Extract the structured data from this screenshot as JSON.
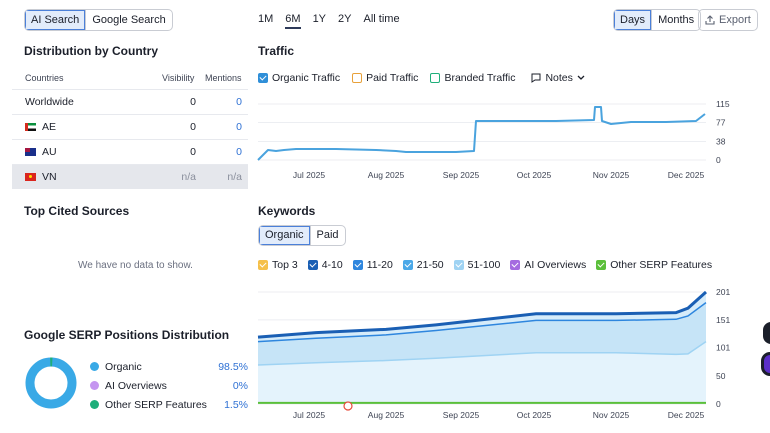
{
  "search_toggle": [
    "AI Search",
    "Google Search"
  ],
  "range_tabs": [
    "1M",
    "6M",
    "1Y",
    "2Y",
    "All time"
  ],
  "granularity": [
    "Days",
    "Months"
  ],
  "export_label": "Export",
  "distribution": {
    "title": "Distribution by Country",
    "headers": {
      "country": "Countries",
      "visibility": "Visibility",
      "mentions": "Mentions"
    },
    "rows": [
      {
        "name": "Worldwide",
        "visibility": "0",
        "mentions": "0"
      },
      {
        "name": "AE",
        "visibility": "0",
        "mentions": "0"
      },
      {
        "name": "AU",
        "visibility": "0",
        "mentions": "0"
      },
      {
        "name": "VN",
        "visibility": "n/a",
        "mentions": "n/a"
      }
    ]
  },
  "top_cited": {
    "title": "Top Cited Sources",
    "empty": "We have no data to show."
  },
  "serp": {
    "title": "Google SERP Positions Distribution",
    "items": [
      {
        "label": "Organic",
        "value": "98.5%",
        "color": "#39a9e6"
      },
      {
        "label": "AI Overviews",
        "value": "0%",
        "color": "#c596f0"
      },
      {
        "label": "Other SERP Features",
        "value": "1.5%",
        "color": "#1fae7a"
      }
    ]
  },
  "traffic": {
    "title": "Traffic",
    "legend": [
      "Organic Traffic",
      "Paid Traffic",
      "Branded Traffic"
    ],
    "notes": "Notes",
    "y_ticks": [
      "115",
      "77",
      "38",
      "0"
    ],
    "x_ticks": [
      "Jul 2025",
      "Aug 2025",
      "Sep 2025",
      "Oct 2025",
      "Nov 2025",
      "Dec 2025"
    ]
  },
  "keywords": {
    "title": "Keywords",
    "toggle": [
      "Organic",
      "Paid"
    ],
    "legend": [
      {
        "label": "Top 3",
        "color": "#f5c04a"
      },
      {
        "label": "4-10",
        "color": "#1a5fb4"
      },
      {
        "label": "11-20",
        "color": "#2e86de"
      },
      {
        "label": "21-50",
        "color": "#4aa8e8"
      },
      {
        "label": "51-100",
        "color": "#9fd3f3"
      },
      {
        "label": "AI Overviews",
        "color": "#a56be0"
      },
      {
        "label": "Other SERP Features",
        "color": "#5bbf3a"
      }
    ],
    "y_ticks": [
      "201",
      "151",
      "101",
      "50",
      "0"
    ],
    "x_ticks": [
      "Jul 2025",
      "Aug 2025",
      "Sep 2025",
      "Oct 2025",
      "Nov 2025",
      "Dec 2025"
    ]
  },
  "chart_data": [
    {
      "type": "line",
      "title": "Traffic",
      "ylim": [
        0,
        115
      ],
      "x": [
        "Jun 2025",
        "Jul 2025",
        "Aug 2025",
        "Sep 2025",
        "Sep 2025",
        "Oct 2025",
        "Oct 2025",
        "Nov 2025",
        "Nov 2025",
        "Dec 2025"
      ],
      "series": [
        {
          "name": "Organic Traffic",
          "values": [
            8,
            25,
            22,
            15,
            85,
            88,
            110,
            112,
            80,
            85
          ]
        }
      ]
    },
    {
      "type": "area",
      "title": "Keywords",
      "ylim": [
        0,
        201
      ],
      "x": [
        "Jun 2025",
        "Jul 2025",
        "Aug 2025",
        "Sep 2025",
        "Oct 2025",
        "Nov 2025",
        "Dec 2025",
        "Dec 2025"
      ],
      "series": [
        {
          "name": "4-10",
          "values": [
            120,
            135,
            145,
            165,
            165,
            168,
            172,
            201
          ]
        },
        {
          "name": "21-50",
          "values": [
            110,
            120,
            130,
            150,
            150,
            150,
            152,
            180
          ]
        },
        {
          "name": "51-100",
          "values": [
            70,
            80,
            85,
            90,
            90,
            88,
            90,
            110
          ]
        },
        {
          "name": "Other SERP Features",
          "values": [
            2,
            2,
            2,
            2,
            2,
            2,
            2,
            2
          ]
        }
      ]
    }
  ]
}
